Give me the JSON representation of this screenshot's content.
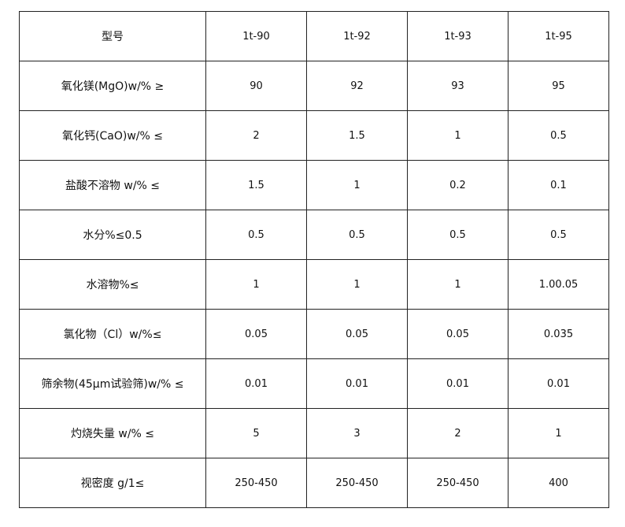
{
  "table": {
    "header": [
      "型号",
      "1t-90",
      "1t-92",
      "1t-93",
      "1t-95"
    ],
    "rows": [
      {
        "label": "氧化镁(MgO)w/% ≥",
        "values": [
          "90",
          "92",
          "93",
          "95"
        ]
      },
      {
        "label": "氧化钙(CaO)w/% ≤",
        "values": [
          "2",
          "1.5",
          "1",
          "0.5"
        ]
      },
      {
        "label": "盐酸不溶物 w/% ≤",
        "values": [
          "1.5",
          "1",
          "0.2",
          "0.1"
        ]
      },
      {
        "label": "水分%≤0.5",
        "values": [
          "0.5",
          "0.5",
          "0.5",
          "0.5"
        ]
      },
      {
        "label": "水溶物%≤",
        "values": [
          "1",
          "1",
          "1",
          "1.00.05"
        ]
      },
      {
        "label": "氯化物（Cl）w/%≤",
        "values": [
          "0.05",
          "0.05",
          "0.05",
          "0.035"
        ]
      },
      {
        "label": "筛余物(45μm试验筛)w/% ≤",
        "values": [
          "0.01",
          "0.01",
          "0.01",
          "0.01"
        ]
      },
      {
        "label": "灼烧失量 w/% ≤",
        "values": [
          "5",
          "3",
          "2",
          "1"
        ]
      },
      {
        "label": "视密度 g/1≤",
        "values": [
          "250-450",
          "250-450",
          "250-450",
          "400"
        ]
      }
    ]
  }
}
